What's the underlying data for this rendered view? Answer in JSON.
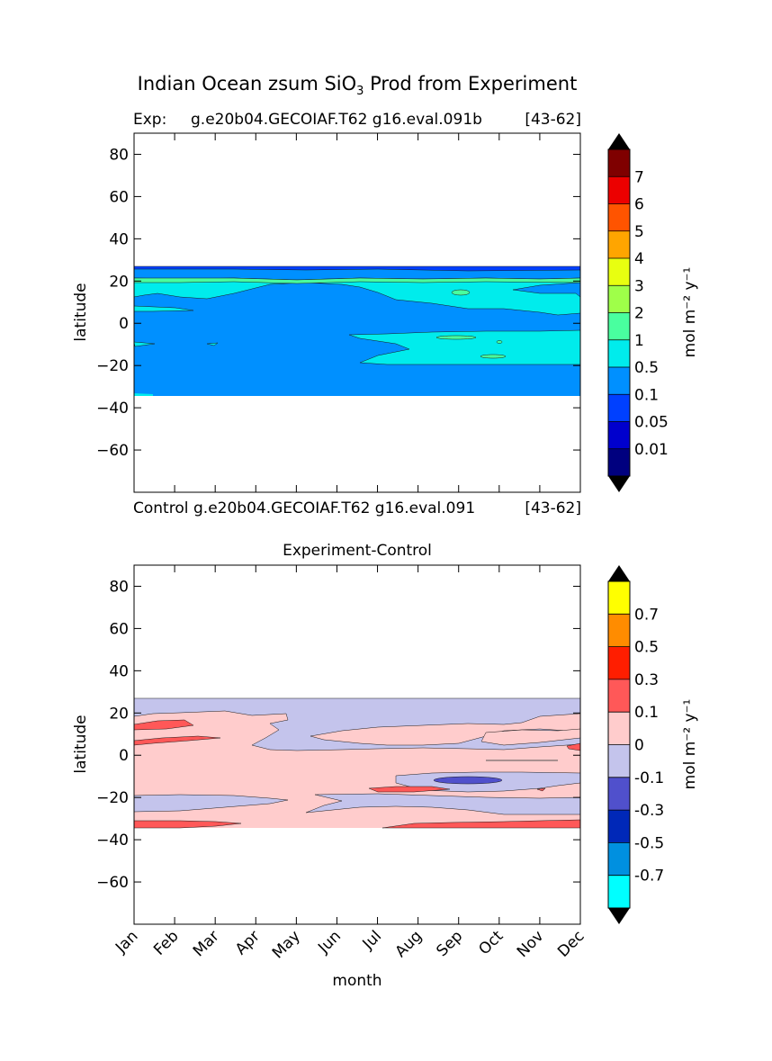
{
  "figure": {
    "title_main": "Indian Ocean zsum SiO",
    "title_sub": "3",
    "title_rest": " Prod from Experiment"
  },
  "chart_data": [
    {
      "type": "heatmap",
      "panel": "top",
      "label_left": "Exp:",
      "label_center": "g.e20b04.GECOIAF.T62 g16.eval.091b",
      "label_right": "[43-62]",
      "ylabel": "latitude",
      "ylim": [
        -80,
        90
      ],
      "yticks": [
        80,
        60,
        40,
        20,
        0,
        -20,
        -40,
        -60
      ],
      "ytick_labels": [
        "80",
        "60",
        "40",
        "20",
        "0",
        "−20",
        "−40",
        "−60"
      ],
      "data_lat_range": [
        -34,
        27
      ],
      "colorbar": {
        "label": "mol m⁻² y⁻¹",
        "levels": [
          "0.01",
          "0.05",
          "0.1",
          "0.5",
          "1",
          "2",
          "3",
          "4",
          "5",
          "6",
          "7"
        ],
        "colors": [
          "#00007f",
          "#0000cd",
          "#0040ff",
          "#0090ff",
          "#00ecec",
          "#49ff9f",
          "#9fff49",
          "#e8ff10",
          "#ffa500",
          "#ff5400",
          "#ec0000",
          "#7f0000"
        ],
        "extend_colors": {
          "under": "#000000",
          "over": "#000000"
        }
      },
      "regions": [
        {
          "name": "background",
          "value_class": "0.1-0.5",
          "color": "#0090ff"
        },
        {
          "name": "north-band",
          "value_class": "0.5-1",
          "color": "#00ecec"
        },
        {
          "name": "north-edge",
          "value_class": "0.05-0.1",
          "color": "#0040ff"
        },
        {
          "name": "south-band",
          "value_class": "0.5-1",
          "color": "#00ecec"
        },
        {
          "name": "patches",
          "value_class": "1-2",
          "color": "#49ff9f"
        }
      ]
    },
    {
      "type": "heatmap",
      "panel": "bottom",
      "title": "Experiment-Control",
      "label_left": "Control",
      "label_center": "g.e20b04.GECOIAF.T62 g16.eval.091",
      "label_right": "[43-62]",
      "xlabel": "month",
      "ylabel": "latitude",
      "x": [
        "Jan",
        "Feb",
        "Mar",
        "Apr",
        "May",
        "Jun",
        "Jul",
        "Aug",
        "Sep",
        "Oct",
        "Nov",
        "Dec"
      ],
      "ylim": [
        -80,
        90
      ],
      "yticks": [
        80,
        60,
        40,
        20,
        0,
        -20,
        -40,
        -60
      ],
      "ytick_labels": [
        "80",
        "60",
        "40",
        "20",
        "0",
        "−20",
        "−40",
        "−60"
      ],
      "data_lat_range": [
        -34,
        27
      ],
      "colorbar": {
        "label": "mol m⁻² y⁻¹",
        "levels": [
          "-0.7",
          "-0.5",
          "-0.3",
          "-0.1",
          "0",
          "0.1",
          "0.3",
          "0.5",
          "0.7"
        ],
        "colors": [
          "#00ffff",
          "#0090e0",
          "#0028b8",
          "#5050cc",
          "#c4c4ec",
          "#ffcccc",
          "#ff5858",
          "#ff1e00",
          "#ff8c00",
          "#ffff00"
        ],
        "extend_colors": {
          "under": "#000000",
          "over": "#000000"
        }
      },
      "regions": [
        {
          "name": "background",
          "value_class": "0-0.1",
          "color": "#ffcccc"
        },
        {
          "name": "north-negative",
          "value_class": "-0.1-0",
          "color": "#c4c4ec"
        },
        {
          "name": "south-negative",
          "value_class": "-0.1-0",
          "color": "#c4c4ec"
        },
        {
          "name": "positive-patches",
          "value_class": "0.1-0.3",
          "color": "#ff5858"
        },
        {
          "name": "negative-core",
          "value_class": "-0.3--0.1",
          "color": "#5050cc"
        }
      ]
    }
  ]
}
